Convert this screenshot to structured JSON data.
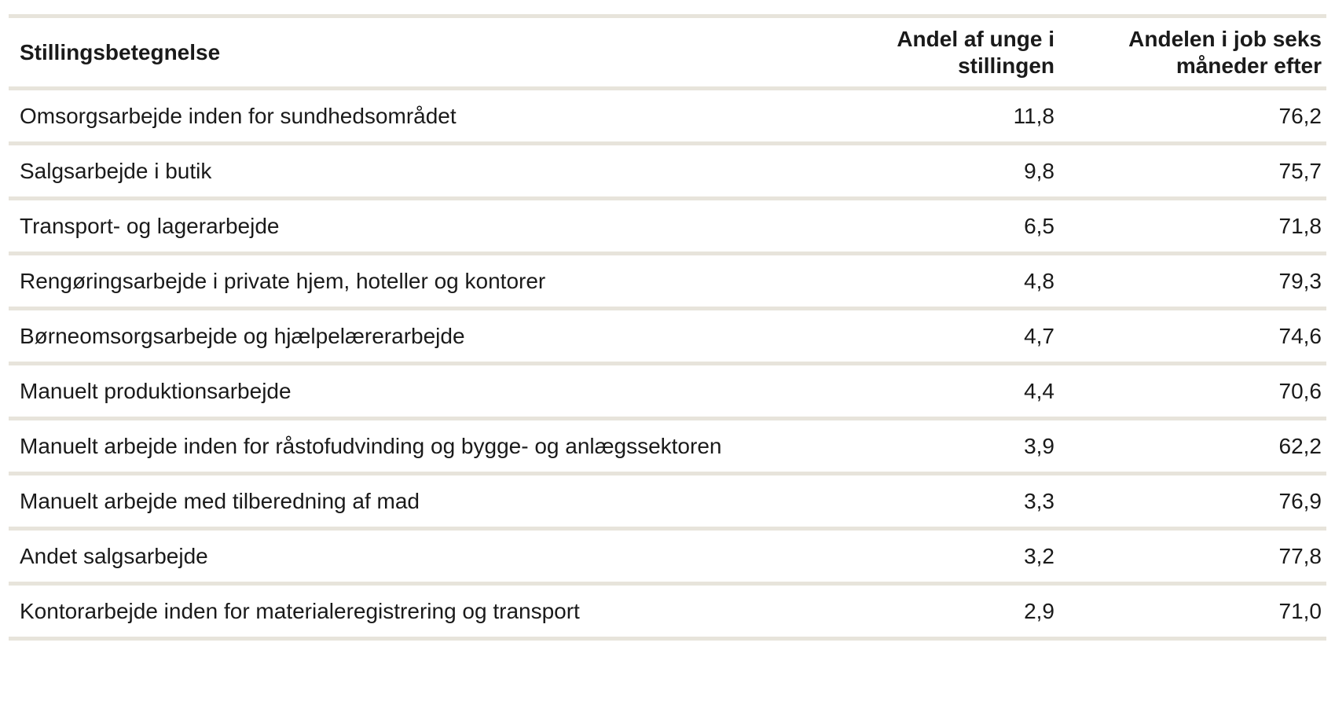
{
  "colors": {
    "background": "#ffffff",
    "text": "#1a1a1a",
    "divider": "#e7e4db"
  },
  "table": {
    "columns": [
      {
        "label": "Stillingsbetegnelse",
        "lines": [
          "Stillingsbetegnelse"
        ],
        "align": "left"
      },
      {
        "label": "Andel af unge i stillingen",
        "lines": [
          "Andel af unge i",
          "stillingen"
        ],
        "align": "right"
      },
      {
        "label": "Andelen i job seks måneder efter",
        "lines": [
          "Andelen i job seks",
          "måneder efter"
        ],
        "align": "right"
      }
    ],
    "rows": [
      {
        "stillingsbetegnelse": "Omsorgsarbejde inden for sundhedsområdet",
        "andel_af_unge_i_stillingen": "11,8",
        "andelen_i_job_seks_maaneder_efter": "76,2"
      },
      {
        "stillingsbetegnelse": "Salgsarbejde i butik",
        "andel_af_unge_i_stillingen": "9,8",
        "andelen_i_job_seks_maaneder_efter": "75,7"
      },
      {
        "stillingsbetegnelse": "Transport- og lagerarbejde",
        "andel_af_unge_i_stillingen": "6,5",
        "andelen_i_job_seks_maaneder_efter": "71,8"
      },
      {
        "stillingsbetegnelse": "Rengøringsarbejde i private hjem, hoteller og kontorer",
        "andel_af_unge_i_stillingen": "4,8",
        "andelen_i_job_seks_maaneder_efter": "79,3"
      },
      {
        "stillingsbetegnelse": "Børneomsorgsarbejde og hjælpelærerarbejde",
        "andel_af_unge_i_stillingen": "4,7",
        "andelen_i_job_seks_maaneder_efter": "74,6"
      },
      {
        "stillingsbetegnelse": "Manuelt produktionsarbejde",
        "andel_af_unge_i_stillingen": "4,4",
        "andelen_i_job_seks_maaneder_efter": "70,6"
      },
      {
        "stillingsbetegnelse": "Manuelt arbejde inden for råstofudvinding og bygge- og anlægssektoren",
        "andel_af_unge_i_stillingen": "3,9",
        "andelen_i_job_seks_maaneder_efter": "62,2"
      },
      {
        "stillingsbetegnelse": "Manuelt arbejde med tilberedning af mad",
        "andel_af_unge_i_stillingen": "3,3",
        "andelen_i_job_seks_maaneder_efter": "76,9"
      },
      {
        "stillingsbetegnelse": "Andet salgsarbejde",
        "andel_af_unge_i_stillingen": "3,2",
        "andelen_i_job_seks_maaneder_efter": "77,8"
      },
      {
        "stillingsbetegnelse": "Kontorarbejde inden for materialeregistrering og transport",
        "andel_af_unge_i_stillingen": "2,9",
        "andelen_i_job_seks_maaneder_efter": "71,0"
      }
    ]
  }
}
